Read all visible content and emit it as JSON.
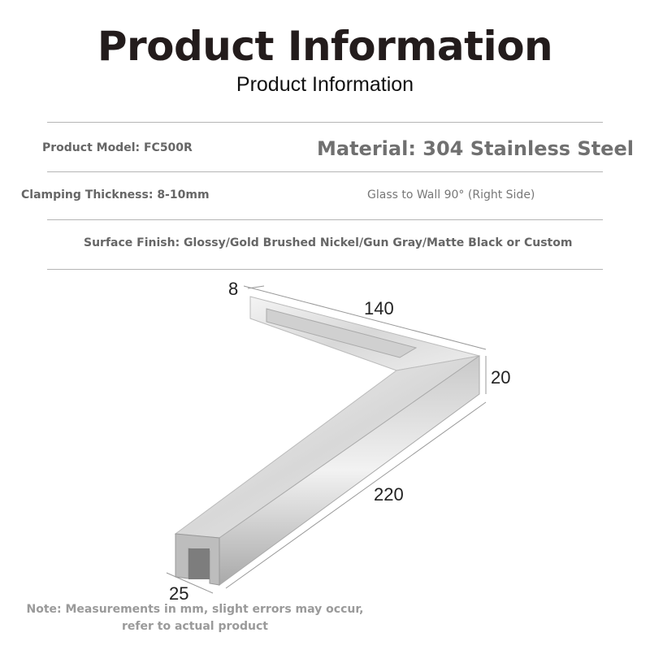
{
  "header": {
    "title": "Product Information",
    "subtitle": "Product Information"
  },
  "specs": {
    "model": "Product Model: FC500R",
    "material": "Material: 304 Stainless Steel",
    "thickness": "Clamping Thickness: 8-10mm",
    "angle": "Glass to Wall 90° (Right Side)",
    "finish": "Surface Finish: Glossy/Gold Brushed Nickel/Gun Gray/Matte Black or Custom"
  },
  "dimensions": {
    "d1": "8",
    "d2": "140",
    "d3": "20",
    "d4": "220",
    "d5": "25"
  },
  "note": {
    "line1": "Note: Measurements in mm, slight errors may occur,",
    "line2": "refer to actual product"
  }
}
